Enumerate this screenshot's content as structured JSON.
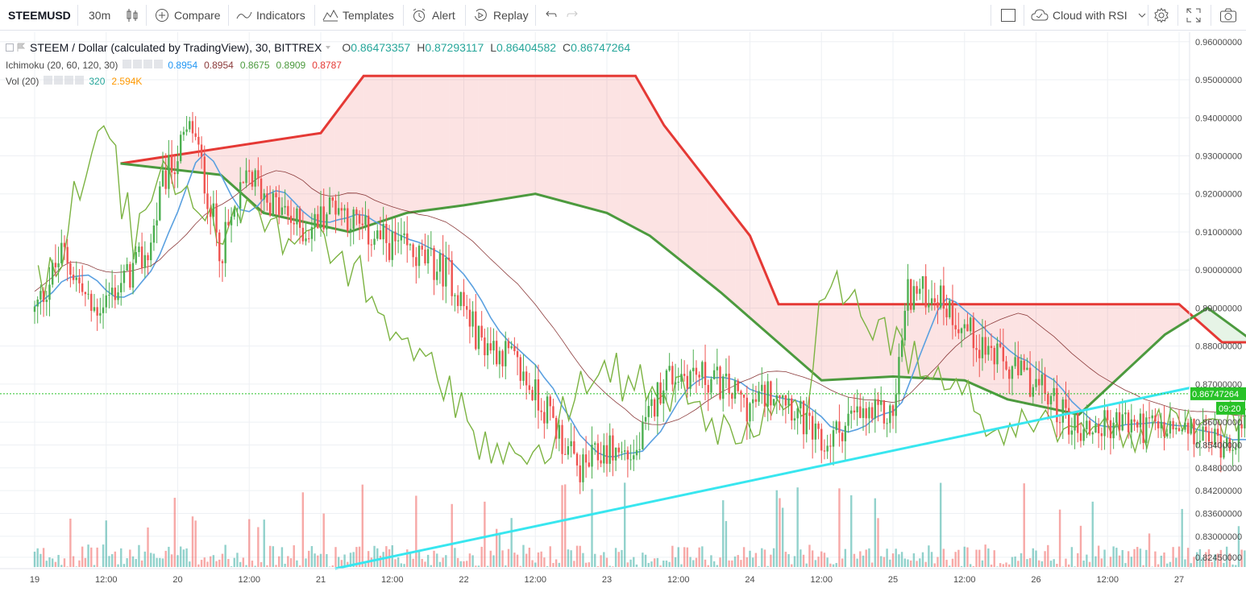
{
  "toolbar": {
    "symbol": "STEEMUSD",
    "interval": "30m",
    "compare": "Compare",
    "indicators": "Indicators",
    "templates": "Templates",
    "alert": "Alert",
    "replay": "Replay",
    "layout_name": "Cloud with RSI"
  },
  "legend": {
    "title": "STEEM / Dollar (calculated by TradingView), 30, BITTREX",
    "o_label": "O",
    "o": "0.86473357",
    "h_label": "H",
    "h": "0.87293117",
    "l_label": "L",
    "l": "0.86404582",
    "c_label": "C",
    "c": "0.86747264",
    "ichimoku_label": "Ichimoku (20, 60, 120, 30)",
    "ichimoku_values": [
      "0.8954",
      "0.8954",
      "0.8675",
      "0.8909",
      "0.8787"
    ],
    "vol_label": "Vol (20)",
    "vol_values": [
      "320",
      "2.594K"
    ]
  },
  "colors": {
    "up": "#26a69a",
    "candle_up": "#4caf50",
    "down": "#ef5350",
    "conversion": "#5aa0e0",
    "base": "#8b3a3a",
    "lagging": "#7cb342",
    "lead_a": "#4c9a3e",
    "lead_b": "#e53935",
    "trendline": "#38e6ef",
    "last_price": "#27c227"
  },
  "chart_data": {
    "type": "candlestick",
    "symbol": "STEEMUSD",
    "exchange": "BITTREX",
    "interval": "30",
    "y_axis_ticks": [
      "0.96000000",
      "0.95000000",
      "0.94000000",
      "0.93000000",
      "0.92000000",
      "0.91000000",
      "0.90000000",
      "0.89000000",
      "0.88000000",
      "0.87000000",
      "0.86000000",
      "0.85400000",
      "0.84800000",
      "0.84200000",
      "0.83600000",
      "0.83000000",
      "0.82450000"
    ],
    "x_axis_ticks": [
      "19",
      "12:00",
      "20",
      "12:00",
      "21",
      "12:00",
      "22",
      "12:00",
      "23",
      "12:00",
      "24",
      "12:00",
      "25",
      "12:00",
      "26",
      "12:00",
      "27"
    ],
    "last_price": "0.86747264",
    "countdown": "09:20",
    "ylim": [
      0.8215,
      0.9625
    ],
    "ichimoku": {
      "cloud_lead_b": [
        [
          0.6,
          0.928
        ],
        [
          2.0,
          0.936
        ],
        [
          2.3,
          0.951
        ],
        [
          4.2,
          0.951
        ],
        [
          4.4,
          0.938
        ],
        [
          5.0,
          0.909
        ],
        [
          5.2,
          0.891
        ],
        [
          8.0,
          0.891
        ],
        [
          8.3,
          0.881
        ],
        [
          11.2,
          0.881
        ],
        [
          11.6,
          0.884
        ],
        [
          12.4,
          0.884
        ],
        [
          12.6,
          0.871
        ],
        [
          12.9,
          0.863
        ],
        [
          13.3,
          0.863
        ],
        [
          13.6,
          0.874
        ],
        [
          14.3,
          0.874
        ],
        [
          14.4,
          0.881
        ],
        [
          14.8,
          0.881
        ],
        [
          14.9,
          0.889
        ],
        [
          15.7,
          0.889
        ]
      ],
      "cloud_lead_a": [
        [
          0.6,
          0.928
        ],
        [
          1.3,
          0.925
        ],
        [
          1.6,
          0.915
        ],
        [
          2.2,
          0.91
        ],
        [
          2.6,
          0.915
        ],
        [
          3.0,
          0.917
        ],
        [
          3.5,
          0.92
        ],
        [
          4.0,
          0.915
        ],
        [
          4.3,
          0.909
        ],
        [
          4.8,
          0.894
        ],
        [
          5.5,
          0.871
        ],
        [
          6.0,
          0.872
        ],
        [
          6.5,
          0.871
        ],
        [
          6.8,
          0.866
        ],
        [
          7.3,
          0.862
        ],
        [
          7.9,
          0.883
        ],
        [
          8.2,
          0.89
        ],
        [
          8.6,
          0.879
        ],
        [
          9.0,
          0.874
        ],
        [
          9.8,
          0.868
        ],
        [
          10.4,
          0.865
        ],
        [
          10.8,
          0.861
        ],
        [
          11.5,
          0.867
        ],
        [
          12.0,
          0.869
        ],
        [
          12.5,
          0.872
        ],
        [
          13.0,
          0.872
        ],
        [
          13.5,
          0.879
        ],
        [
          14.0,
          0.883
        ],
        [
          14.5,
          0.888
        ],
        [
          14.9,
          0.889
        ],
        [
          15.3,
          0.897
        ],
        [
          15.6,
          0.893
        ],
        [
          15.7,
          0.893
        ]
      ]
    }
  }
}
